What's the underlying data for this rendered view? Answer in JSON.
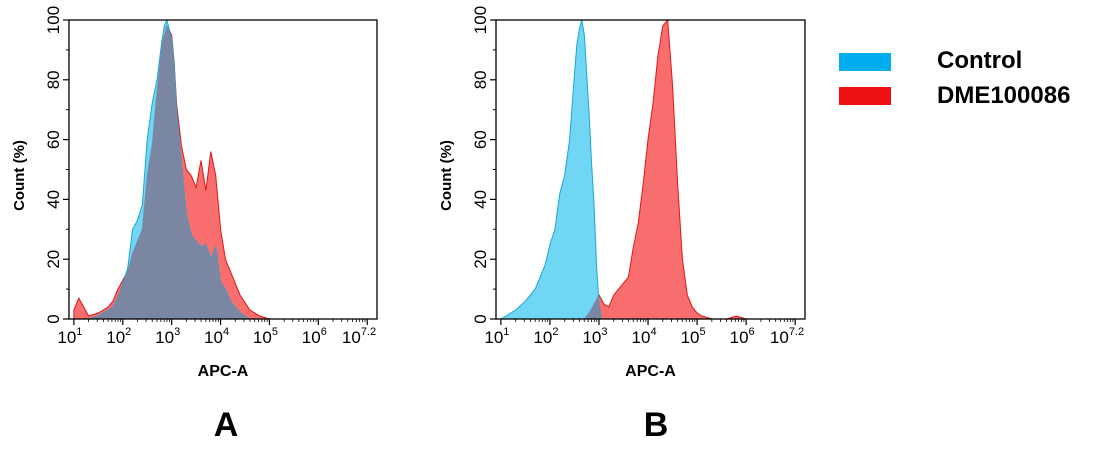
{
  "colors": {
    "control_fill": "#41C8F0",
    "control_stroke": "#1BA7D6",
    "sample_fill": "#F53C3C",
    "sample_stroke": "#E01818",
    "overlap_fill": "#7B86A3",
    "legend_control": "#00AEEF",
    "legend_sample": "#EE1111"
  },
  "legend": [
    {
      "name": "Control",
      "color": "#00AEEF"
    },
    {
      "name": "DME100086",
      "color": "#EE1111"
    }
  ],
  "chart_data": [
    {
      "type": "area",
      "panel_label": "A",
      "xlabel": "APC-A",
      "ylabel": "Count  (%)",
      "x_scale": "log10",
      "xlim": [
        0.9,
        7.2
      ],
      "ylim": [
        0,
        100
      ],
      "xticks": [
        {
          "base": "10",
          "exp": "1"
        },
        {
          "base": "10",
          "exp": "2"
        },
        {
          "base": "10",
          "exp": "3"
        },
        {
          "base": "10",
          "exp": "4"
        },
        {
          "base": "10",
          "exp": "5"
        },
        {
          "base": "10",
          "exp": "6"
        },
        {
          "base": "10",
          "exp": "7.2"
        }
      ],
      "yticks": [
        "0",
        "20",
        "40",
        "60",
        "80",
        "100"
      ],
      "series": [
        {
          "name": "Control",
          "x": [
            1.0,
            1.3,
            1.5,
            1.7,
            1.8,
            1.9,
            2.0,
            2.1,
            2.2,
            2.3,
            2.4,
            2.5,
            2.6,
            2.7,
            2.8,
            2.85,
            2.9,
            2.95,
            3.0,
            3.05,
            3.1,
            3.2,
            3.3,
            3.4,
            3.5,
            3.6,
            3.7,
            3.8,
            3.9,
            4.0,
            4.1,
            4.2,
            4.4,
            4.6,
            4.8
          ],
          "values": [
            0,
            0,
            1,
            3,
            4,
            7,
            12,
            17,
            30,
            33,
            38,
            60,
            72,
            80,
            93,
            98,
            100,
            97,
            94,
            86,
            70,
            52,
            35,
            28,
            26,
            24,
            25,
            20,
            24,
            12,
            10,
            6,
            2,
            0,
            0
          ]
        },
        {
          "name": "DME100086",
          "x": [
            1.0,
            1.1,
            1.2,
            1.3,
            1.5,
            1.7,
            1.8,
            1.9,
            2.0,
            2.1,
            2.2,
            2.3,
            2.4,
            2.5,
            2.6,
            2.7,
            2.8,
            2.9,
            3.0,
            3.05,
            3.1,
            3.2,
            3.3,
            3.4,
            3.5,
            3.6,
            3.7,
            3.8,
            3.9,
            4.0,
            4.1,
            4.2,
            4.3,
            4.4,
            4.6,
            4.8,
            5.0
          ],
          "values": [
            3,
            7,
            4,
            1,
            2,
            4,
            6,
            10,
            13,
            16,
            22,
            26,
            30,
            48,
            58,
            76,
            92,
            98,
            95,
            86,
            72,
            58,
            50,
            48,
            44,
            53,
            43,
            56,
            48,
            30,
            20,
            16,
            12,
            8,
            3,
            1,
            0
          ]
        }
      ]
    },
    {
      "type": "area",
      "panel_label": "B",
      "xlabel": "APC-A",
      "ylabel": "Count  (%)",
      "x_scale": "log10",
      "xlim": [
        0.9,
        7.2
      ],
      "ylim": [
        0,
        100
      ],
      "xticks": [
        {
          "base": "10",
          "exp": "1"
        },
        {
          "base": "10",
          "exp": "2"
        },
        {
          "base": "10",
          "exp": "3"
        },
        {
          "base": "10",
          "exp": "4"
        },
        {
          "base": "10",
          "exp": "5"
        },
        {
          "base": "10",
          "exp": "6"
        },
        {
          "base": "10",
          "exp": "7.2"
        }
      ],
      "yticks": [
        "0",
        "20",
        "40",
        "60",
        "80",
        "100"
      ],
      "series": [
        {
          "name": "Control",
          "x": [
            1.0,
            1.3,
            1.5,
            1.7,
            1.9,
            2.0,
            2.1,
            2.2,
            2.3,
            2.4,
            2.5,
            2.55,
            2.6,
            2.65,
            2.7,
            2.75,
            2.8,
            2.85,
            2.9,
            2.95,
            3.0,
            3.05
          ],
          "values": [
            0,
            3,
            6,
            10,
            18,
            25,
            30,
            42,
            48,
            60,
            82,
            92,
            97,
            100,
            95,
            82,
            68,
            52,
            38,
            18,
            5,
            0
          ]
        },
        {
          "name": "DME100086",
          "x": [
            2.7,
            2.8,
            2.9,
            3.0,
            3.1,
            3.2,
            3.3,
            3.4,
            3.5,
            3.6,
            3.7,
            3.8,
            3.9,
            4.0,
            4.1,
            4.2,
            4.3,
            4.4,
            4.5,
            4.6,
            4.7,
            4.8,
            4.9,
            5.0,
            5.1,
            5.3,
            5.6,
            5.8,
            6.0,
            6.2
          ],
          "values": [
            0,
            2,
            5,
            8,
            5,
            4,
            8,
            10,
            12,
            14,
            24,
            32,
            45,
            60,
            72,
            88,
            98,
            100,
            78,
            46,
            20,
            8,
            4,
            2,
            1,
            0,
            0,
            1,
            0,
            0
          ]
        }
      ]
    }
  ]
}
